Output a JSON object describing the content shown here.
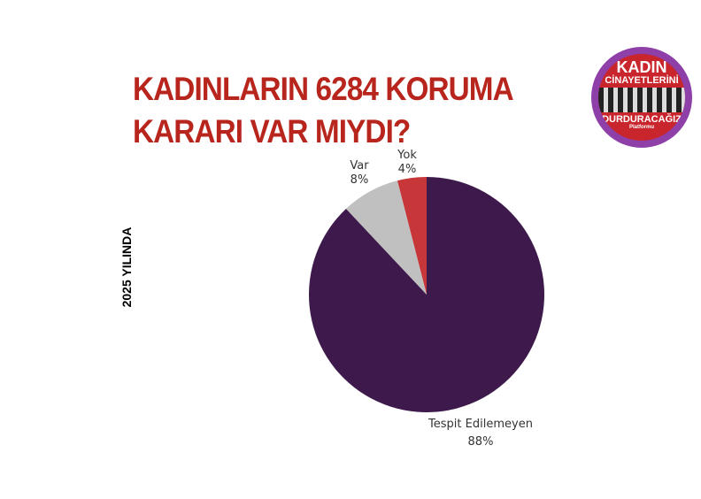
{
  "chart_data": {
    "type": "pie",
    "title": "KADINLARIN 6284 KORUMA KARARI VAR MIYDI?",
    "title_lines": [
      "KADINLARIN 6284 KORUMA",
      "KARARI VAR MIYDI?"
    ],
    "side_label": "2025 YILINDA",
    "slices": [
      {
        "label": "Yok",
        "value": 4,
        "value_label": "4%",
        "color": "#c7373a"
      },
      {
        "label": "Var",
        "value": 8,
        "value_label": "8%",
        "color": "#c0c0c0"
      },
      {
        "label": "Tespit Edilemeyen",
        "value": 88,
        "value_label": "88%",
        "color": "#3d1a4b"
      }
    ],
    "start": "12 o'clock",
    "direction": "counterclockwise"
  },
  "logo": {
    "line1": "KADIN",
    "line2": "CİNAYETLERİNİ",
    "line3": "DURDURACAĞIZ",
    "line4": "Platformu",
    "colors": {
      "ring": "#8e3fa8",
      "fill": "#c8262c"
    }
  }
}
